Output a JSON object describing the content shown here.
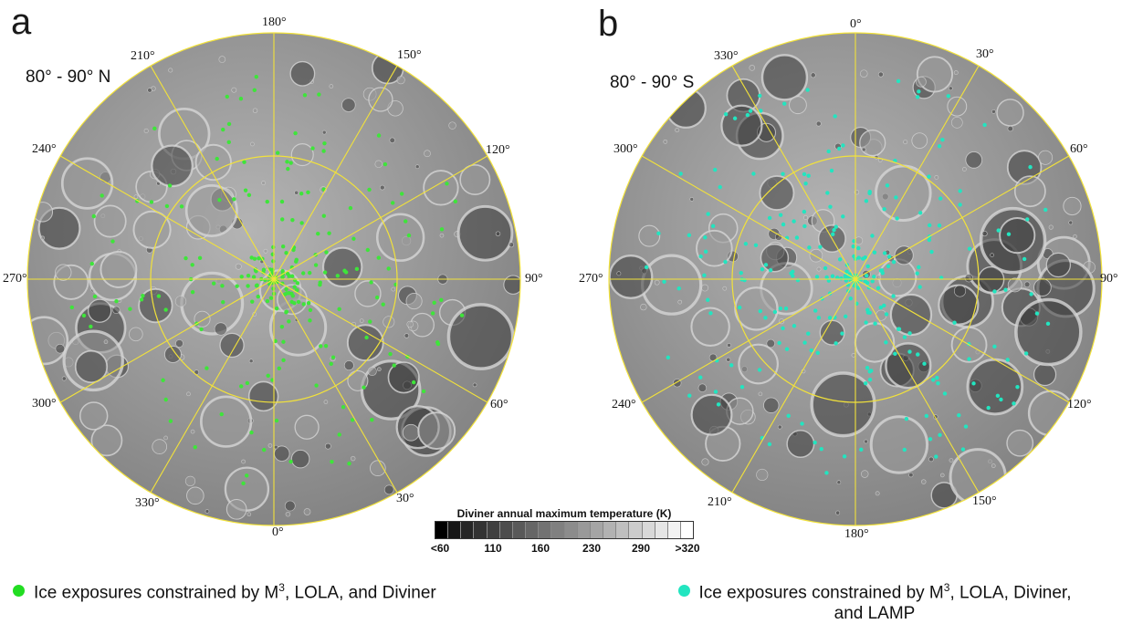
{
  "panel_a": {
    "letter": "a",
    "region": "80° - 90° N",
    "labels": [
      "180°",
      "150°",
      "120°",
      "90°",
      "60°",
      "30°",
      "0°",
      "330°",
      "300°",
      "270°",
      "240°",
      "210°"
    ],
    "ice_color": "#3ee53a"
  },
  "panel_b": {
    "letter": "b",
    "region": "80° - 90° S",
    "labels": [
      "0°",
      "30°",
      "60°",
      "90°",
      "120°",
      "150°",
      "180°",
      "210°",
      "240°",
      "270°",
      "300°",
      "330°"
    ],
    "ice_color": "#22e5c0"
  },
  "colorbar": {
    "title": "Diviner annual maximum temperature (K)",
    "ticks": [
      "<60",
      "110",
      "160",
      "230",
      "290",
      ">320"
    ],
    "gray_levels": [
      "#000000",
      "#161616",
      "#262626",
      "#333333",
      "#3f3f3f",
      "#4c4c4c",
      "#595959",
      "#666666",
      "#727272",
      "#808080",
      "#8c8c8c",
      "#999999",
      "#a5a5a5",
      "#b2b2b2",
      "#bfbfbf",
      "#cccccc",
      "#d8d8d8",
      "#e5e5e5",
      "#f2f2f2",
      "#ffffff"
    ]
  },
  "legend": {
    "green": {
      "before": "Ice exposures constrained by M",
      "sup": "3",
      "after": ", LOLA, and Diviner",
      "color": "#22dd22"
    },
    "cyan": {
      "before": "Ice exposures constrained by M",
      "sup": "3",
      "after": ", LOLA, Diviner,",
      "line2": "and LAMP",
      "color": "#22e5c0"
    }
  },
  "map_style": {
    "grid_color": "#f2e23a",
    "surface_light": "#b4b4b4",
    "surface_dark": "#7d7d7d"
  }
}
